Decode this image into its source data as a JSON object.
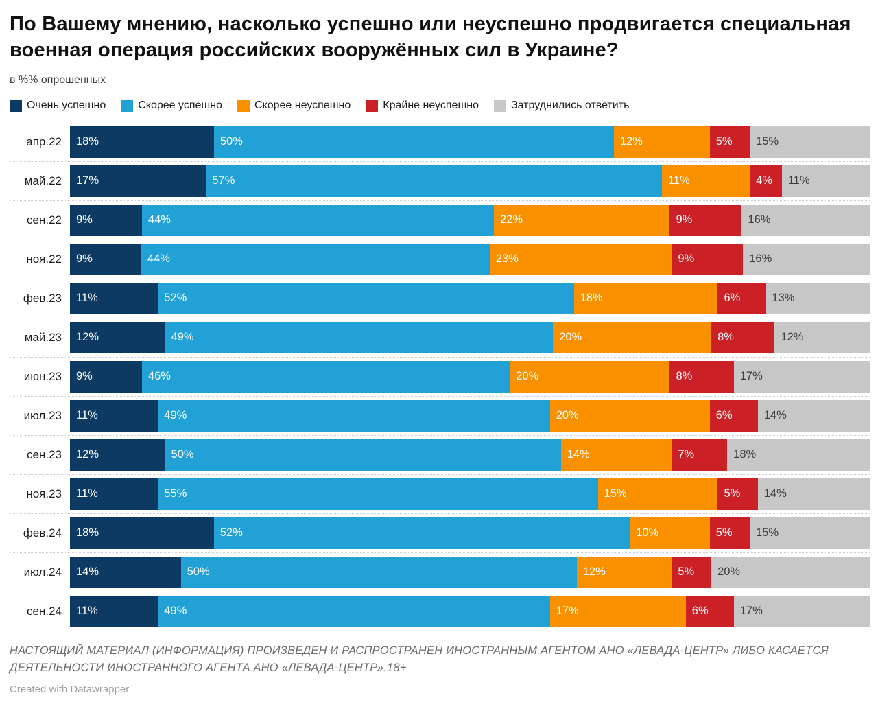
{
  "title": "По Вашему мнению, насколько успешно или неуспешно продвигается специальная военная операция российских вооружённых сил в Украине?",
  "subtitle": "в %% опрошенных",
  "chart_data": {
    "type": "bar",
    "stacked": true,
    "orientation": "horizontal",
    "value_suffix": "%",
    "xlim": [
      0,
      100
    ],
    "legend_position": "top",
    "grid": false,
    "categories": [
      "апр.22",
      "май.22",
      "сен.22",
      "ноя.22",
      "фев.23",
      "май.23",
      "июн.23",
      "июл.23",
      "сен.23",
      "ноя.23",
      "фев.24",
      "июл.24",
      "сен.24"
    ],
    "series": [
      {
        "key": "very-successful",
        "name": "Очень успешно",
        "color": "#0d3a63",
        "label_color": "#ffffff",
        "values": [
          18,
          17,
          9,
          9,
          11,
          12,
          9,
          11,
          12,
          11,
          18,
          14,
          11
        ]
      },
      {
        "key": "rather-successful",
        "name": "Скорее успешно",
        "color": "#21a1d6",
        "label_color": "#ffffff",
        "values": [
          50,
          57,
          44,
          44,
          52,
          49,
          46,
          49,
          50,
          55,
          52,
          50,
          49
        ]
      },
      {
        "key": "rather-unsuccessful",
        "name": "Скорее неуспешно",
        "color": "#f89000",
        "label_color": "#ffffff",
        "values": [
          12,
          11,
          22,
          23,
          18,
          20,
          20,
          20,
          14,
          15,
          10,
          12,
          17
        ]
      },
      {
        "key": "very-unsuccessful",
        "name": "Крайне неуспешно",
        "color": "#cc2027",
        "label_color": "#ffffff",
        "values": [
          5,
          4,
          9,
          9,
          6,
          8,
          8,
          6,
          7,
          5,
          5,
          5,
          6
        ]
      },
      {
        "key": "hard-to-answer",
        "name": "Затруднились ответить",
        "color": "#c7c7c7",
        "label_color": "#3c3c3c",
        "values": [
          15,
          11,
          16,
          16,
          13,
          12,
          17,
          14,
          18,
          14,
          15,
          20,
          17
        ]
      }
    ]
  },
  "footer": {
    "disclaimer": "НАСТОЯЩИЙ МАТЕРИАЛ (ИНФОРМАЦИЯ) ПРОИЗВЕДЕН И РАСПРОСТРАНЕН ИНОСТРАННЫМ АГЕНТОМ АНО «ЛЕВАДА-ЦЕНТР» ЛИБО КАСАЕТСЯ ДЕЯТЕЛЬНОСТИ ИНОСТРАННОГО АГЕНТА АНО «ЛЕВАДА-ЦЕНТР».18+",
    "credit": "Created with Datawrapper"
  }
}
